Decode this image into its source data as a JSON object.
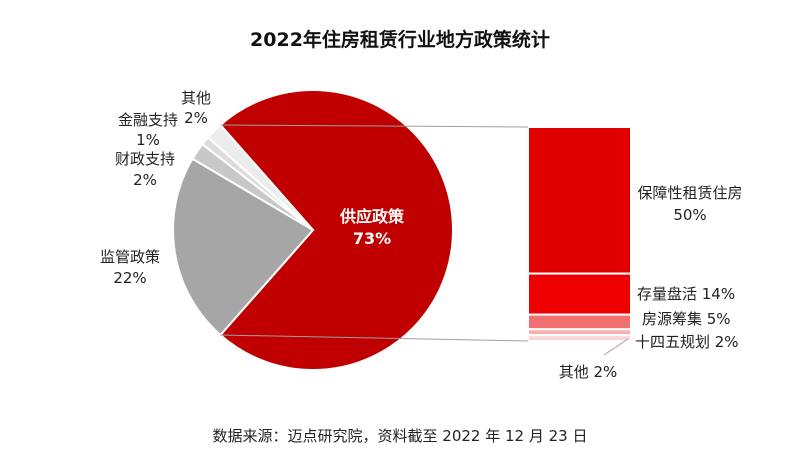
{
  "chart_data": {
    "type": "bar-of-pie",
    "title": "2022年住房租赁行业地方政策统计",
    "source": "数据来源：迈点研究院，资料截至 2022 年 12 月 23 日",
    "watermark": "迈点研究院",
    "pie": [
      {
        "name": "供应政策",
        "value": 73,
        "label": "73%",
        "color": "#c00000"
      },
      {
        "name": "监管政策",
        "value": 22,
        "label": "22%",
        "color": "#a6a6a6"
      },
      {
        "name": "财政支持",
        "value": 2,
        "label": "2%",
        "color": "#c8c8c8"
      },
      {
        "name": "金融支持",
        "value": 1,
        "label": "1%",
        "color": "#dcdcdc"
      },
      {
        "name": "其他",
        "value": 2,
        "label": "2%",
        "color": "#ececec"
      }
    ],
    "bar": [
      {
        "name": "保障性租赁住房",
        "value": 50,
        "label": "50%",
        "color": "#e00000"
      },
      {
        "name": "存量盘活",
        "value": 14,
        "label": "14%",
        "color": "#ee0000"
      },
      {
        "name": "房源筹集",
        "value": 5,
        "label": "5%",
        "color": "#f07070"
      },
      {
        "name": "十四五规划",
        "value": 2,
        "label": "2%",
        "color": "#f6b0b0"
      },
      {
        "name": "其他",
        "value": 2,
        "label": "2%",
        "color": "#fbd6d6"
      }
    ]
  }
}
